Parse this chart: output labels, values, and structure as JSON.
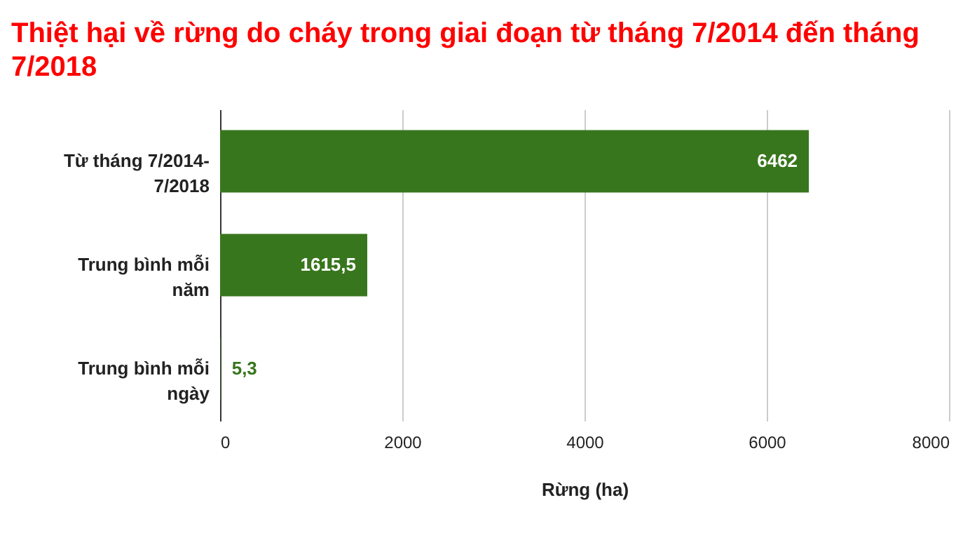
{
  "chart_data": {
    "type": "bar",
    "orientation": "horizontal",
    "title": "Thiệt hại về rừng do cháy trong giai đoạn từ tháng 7/2014 đến tháng 7/2018",
    "categories": [
      "Từ tháng 7/2014-7/2018",
      "Trung bình mỗi năm",
      "Trung bình mỗi ngày"
    ],
    "values": [
      6462,
      1615.5,
      5.3
    ],
    "value_labels": [
      "6462",
      "1615,5",
      "5,3"
    ],
    "color": "#38761d",
    "xlabel": "Rừng (ha)",
    "xlim": [
      0,
      8000
    ],
    "xticks": [
      0,
      2000,
      4000,
      6000,
      8000
    ],
    "grid": "x"
  }
}
